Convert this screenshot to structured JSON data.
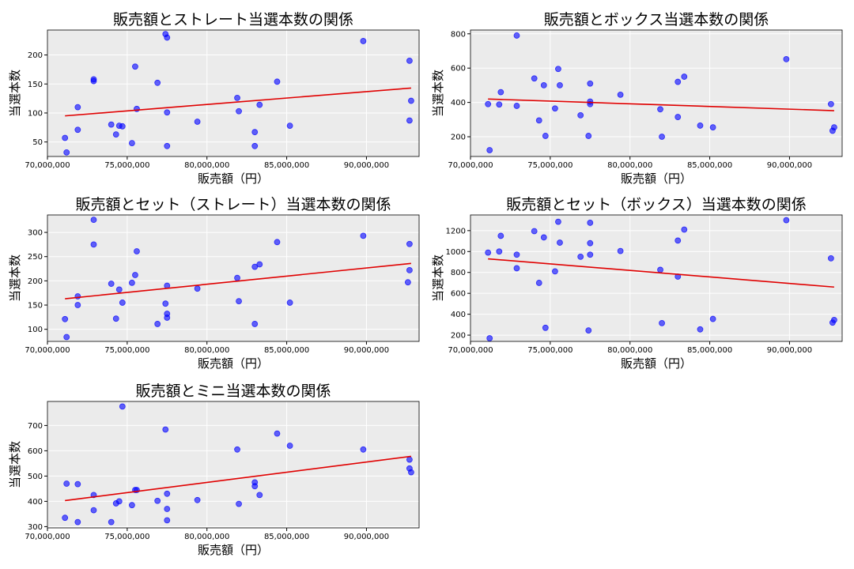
{
  "chart_data": [
    {
      "type": "scatter",
      "title": "販売額とストレート当選本数の関係",
      "xlabel": "販売額（円）",
      "ylabel": "当選本数",
      "xlim": [
        70000000,
        93300000
      ],
      "ylim": [
        25,
        243
      ],
      "xticks": [
        70000000,
        75000000,
        80000000,
        85000000,
        90000000
      ],
      "xtick_labels": [
        "70,000,000",
        "75,000,000",
        "80,000,000",
        "85,000,000",
        "90,000,000"
      ],
      "yticks": [
        50,
        100,
        150,
        200
      ],
      "ytick_labels": [
        "50",
        "100",
        "150",
        "200"
      ],
      "grid": true,
      "points": [
        {
          "x": 71100000,
          "y": 57
        },
        {
          "x": 71200000,
          "y": 32
        },
        {
          "x": 71900000,
          "y": 71
        },
        {
          "x": 71900000,
          "y": 110
        },
        {
          "x": 72900000,
          "y": 158
        },
        {
          "x": 72900000,
          "y": 155
        },
        {
          "x": 74000000,
          "y": 80
        },
        {
          "x": 74300000,
          "y": 63
        },
        {
          "x": 74500000,
          "y": 78
        },
        {
          "x": 74700000,
          "y": 77
        },
        {
          "x": 75300000,
          "y": 48
        },
        {
          "x": 75500000,
          "y": 180
        },
        {
          "x": 75600000,
          "y": 107
        },
        {
          "x": 76900000,
          "y": 152
        },
        {
          "x": 77400000,
          "y": 236
        },
        {
          "x": 77500000,
          "y": 230
        },
        {
          "x": 77500000,
          "y": 43
        },
        {
          "x": 77500000,
          "y": 101
        },
        {
          "x": 79400000,
          "y": 85
        },
        {
          "x": 81900000,
          "y": 126
        },
        {
          "x": 82000000,
          "y": 103
        },
        {
          "x": 83000000,
          "y": 67
        },
        {
          "x": 83000000,
          "y": 43
        },
        {
          "x": 83300000,
          "y": 114
        },
        {
          "x": 84400000,
          "y": 154
        },
        {
          "x": 85200000,
          "y": 78
        },
        {
          "x": 89800000,
          "y": 224
        },
        {
          "x": 92700000,
          "y": 190
        },
        {
          "x": 92700000,
          "y": 87
        },
        {
          "x": 92800000,
          "y": 121
        }
      ],
      "trend": {
        "x": [
          71100000,
          92800000
        ],
        "y": [
          95,
          143
        ]
      },
      "point_color": "#0000ff",
      "trend_color": "#e00000"
    },
    {
      "type": "scatter",
      "title": "販売額とボックス当選本数の関係",
      "xlabel": "販売額（円）",
      "ylabel": "当選本数",
      "xlim": [
        70000000,
        93300000
      ],
      "ylim": [
        85,
        822
      ],
      "xticks": [
        70000000,
        75000000,
        80000000,
        85000000,
        90000000
      ],
      "xtick_labels": [
        "70,000,000",
        "75,000,000",
        "80,000,000",
        "85,000,000",
        "90,000,000"
      ],
      "yticks": [
        200,
        400,
        600,
        800
      ],
      "ytick_labels": [
        "200",
        "400",
        "600",
        "800"
      ],
      "grid": true,
      "points": [
        {
          "x": 71100000,
          "y": 390
        },
        {
          "x": 71200000,
          "y": 122
        },
        {
          "x": 71800000,
          "y": 388
        },
        {
          "x": 71900000,
          "y": 460
        },
        {
          "x": 72900000,
          "y": 790
        },
        {
          "x": 72900000,
          "y": 380
        },
        {
          "x": 74000000,
          "y": 540
        },
        {
          "x": 74300000,
          "y": 295
        },
        {
          "x": 74600000,
          "y": 500
        },
        {
          "x": 74700000,
          "y": 205
        },
        {
          "x": 75300000,
          "y": 365
        },
        {
          "x": 75500000,
          "y": 595
        },
        {
          "x": 75600000,
          "y": 500
        },
        {
          "x": 76900000,
          "y": 325
        },
        {
          "x": 77400000,
          "y": 205
        },
        {
          "x": 77500000,
          "y": 510
        },
        {
          "x": 77500000,
          "y": 405
        },
        {
          "x": 77500000,
          "y": 390
        },
        {
          "x": 79400000,
          "y": 445
        },
        {
          "x": 81900000,
          "y": 360
        },
        {
          "x": 82000000,
          "y": 200
        },
        {
          "x": 83000000,
          "y": 520
        },
        {
          "x": 83000000,
          "y": 315
        },
        {
          "x": 83400000,
          "y": 550
        },
        {
          "x": 84400000,
          "y": 265
        },
        {
          "x": 85200000,
          "y": 255
        },
        {
          "x": 89800000,
          "y": 652
        },
        {
          "x": 92600000,
          "y": 390
        },
        {
          "x": 92700000,
          "y": 235
        },
        {
          "x": 92800000,
          "y": 255
        }
      ],
      "trend": {
        "x": [
          71100000,
          92800000
        ],
        "y": [
          420,
          352
        ]
      },
      "point_color": "#0000ff",
      "trend_color": "#e00000"
    },
    {
      "type": "scatter",
      "title": "販売額とセット（ストレート）当選本数の関係",
      "xlabel": "販売額（円）",
      "ylabel": "当選本数",
      "xlim": [
        70000000,
        93300000
      ],
      "ylim": [
        75,
        336
      ],
      "xticks": [
        70000000,
        75000000,
        80000000,
        85000000,
        90000000
      ],
      "xtick_labels": [
        "70,000,000",
        "75,000,000",
        "80,000,000",
        "85,000,000",
        "90,000,000"
      ],
      "yticks": [
        100,
        150,
        200,
        250,
        300
      ],
      "ytick_labels": [
        "100",
        "150",
        "200",
        "250",
        "300"
      ],
      "grid": true,
      "points": [
        {
          "x": 71100000,
          "y": 121
        },
        {
          "x": 71200000,
          "y": 84
        },
        {
          "x": 71900000,
          "y": 150
        },
        {
          "x": 71900000,
          "y": 168
        },
        {
          "x": 72900000,
          "y": 326
        },
        {
          "x": 72900000,
          "y": 275
        },
        {
          "x": 74000000,
          "y": 194
        },
        {
          "x": 74300000,
          "y": 122
        },
        {
          "x": 74500000,
          "y": 182
        },
        {
          "x": 74700000,
          "y": 155
        },
        {
          "x": 75300000,
          "y": 196
        },
        {
          "x": 75500000,
          "y": 212
        },
        {
          "x": 75600000,
          "y": 261
        },
        {
          "x": 76900000,
          "y": 111
        },
        {
          "x": 77400000,
          "y": 153
        },
        {
          "x": 77500000,
          "y": 190
        },
        {
          "x": 77500000,
          "y": 132
        },
        {
          "x": 77500000,
          "y": 124
        },
        {
          "x": 79400000,
          "y": 184
        },
        {
          "x": 81900000,
          "y": 206
        },
        {
          "x": 82000000,
          "y": 158
        },
        {
          "x": 83000000,
          "y": 229
        },
        {
          "x": 83000000,
          "y": 111
        },
        {
          "x": 83300000,
          "y": 234
        },
        {
          "x": 84400000,
          "y": 280
        },
        {
          "x": 85200000,
          "y": 155
        },
        {
          "x": 89800000,
          "y": 293
        },
        {
          "x": 92700000,
          "y": 276
        },
        {
          "x": 92700000,
          "y": 222
        },
        {
          "x": 92600000,
          "y": 197
        }
      ],
      "trend": {
        "x": [
          71100000,
          92800000
        ],
        "y": [
          163,
          236
        ]
      },
      "point_color": "#0000ff",
      "trend_color": "#e00000"
    },
    {
      "type": "scatter",
      "title": "販売額とセット（ボックス）当選本数の関係",
      "xlabel": "販売額（円）",
      "ylabel": "当選本数",
      "xlim": [
        70000000,
        93300000
      ],
      "ylim": [
        140,
        1350
      ],
      "xticks": [
        70000000,
        75000000,
        80000000,
        85000000,
        90000000
      ],
      "xtick_labels": [
        "70,000,000",
        "75,000,000",
        "80,000,000",
        "85,000,000",
        "90,000,000"
      ],
      "yticks": [
        200,
        400,
        600,
        800,
        1000,
        1200
      ],
      "ytick_labels": [
        "200",
        "400",
        "600",
        "800",
        "1000",
        "1200"
      ],
      "grid": true,
      "points": [
        {
          "x": 71100000,
          "y": 990
        },
        {
          "x": 71200000,
          "y": 170
        },
        {
          "x": 71800000,
          "y": 1000
        },
        {
          "x": 71900000,
          "y": 1150
        },
        {
          "x": 72900000,
          "y": 970
        },
        {
          "x": 72900000,
          "y": 840
        },
        {
          "x": 74000000,
          "y": 1195
        },
        {
          "x": 74300000,
          "y": 700
        },
        {
          "x": 74600000,
          "y": 1135
        },
        {
          "x": 74700000,
          "y": 270
        },
        {
          "x": 75300000,
          "y": 810
        },
        {
          "x": 75500000,
          "y": 1285
        },
        {
          "x": 75600000,
          "y": 1085
        },
        {
          "x": 76900000,
          "y": 950
        },
        {
          "x": 77400000,
          "y": 245
        },
        {
          "x": 77500000,
          "y": 1275
        },
        {
          "x": 77500000,
          "y": 1080
        },
        {
          "x": 77500000,
          "y": 970
        },
        {
          "x": 79400000,
          "y": 1005
        },
        {
          "x": 81900000,
          "y": 825
        },
        {
          "x": 82000000,
          "y": 315
        },
        {
          "x": 83000000,
          "y": 1105
        },
        {
          "x": 83000000,
          "y": 760
        },
        {
          "x": 83400000,
          "y": 1210
        },
        {
          "x": 84400000,
          "y": 255
        },
        {
          "x": 85200000,
          "y": 355
        },
        {
          "x": 89800000,
          "y": 1300
        },
        {
          "x": 92600000,
          "y": 935
        },
        {
          "x": 92700000,
          "y": 320
        },
        {
          "x": 92800000,
          "y": 345
        }
      ],
      "trend": {
        "x": [
          71100000,
          92800000
        ],
        "y": [
          930,
          660
        ]
      },
      "point_color": "#0000ff",
      "trend_color": "#e00000"
    },
    {
      "type": "scatter",
      "title": "販売額とミニ当選本数の関係",
      "xlabel": "販売額（円）",
      "ylabel": "当選本数",
      "xlim": [
        70000000,
        93300000
      ],
      "ylim": [
        295,
        795
      ],
      "xticks": [
        70000000,
        75000000,
        80000000,
        85000000,
        90000000
      ],
      "xtick_labels": [
        "70,000,000",
        "75,000,000",
        "80,000,000",
        "85,000,000",
        "90,000,000"
      ],
      "yticks": [
        300,
        400,
        500,
        600,
        700
      ],
      "ytick_labels": [
        "300",
        "400",
        "500",
        "600",
        "700"
      ],
      "grid": true,
      "points": [
        {
          "x": 71100000,
          "y": 335
        },
        {
          "x": 71200000,
          "y": 470
        },
        {
          "x": 71900000,
          "y": 318
        },
        {
          "x": 71900000,
          "y": 468
        },
        {
          "x": 72900000,
          "y": 365
        },
        {
          "x": 72900000,
          "y": 425
        },
        {
          "x": 74000000,
          "y": 318
        },
        {
          "x": 74300000,
          "y": 392
        },
        {
          "x": 74500000,
          "y": 400
        },
        {
          "x": 74700000,
          "y": 775
        },
        {
          "x": 75300000,
          "y": 385
        },
        {
          "x": 75500000,
          "y": 445
        },
        {
          "x": 75600000,
          "y": 445
        },
        {
          "x": 76900000,
          "y": 402
        },
        {
          "x": 77400000,
          "y": 684
        },
        {
          "x": 77500000,
          "y": 430
        },
        {
          "x": 77500000,
          "y": 370
        },
        {
          "x": 77500000,
          "y": 325
        },
        {
          "x": 79400000,
          "y": 405
        },
        {
          "x": 81900000,
          "y": 605
        },
        {
          "x": 82000000,
          "y": 390
        },
        {
          "x": 83000000,
          "y": 475
        },
        {
          "x": 83000000,
          "y": 460
        },
        {
          "x": 83300000,
          "y": 425
        },
        {
          "x": 84400000,
          "y": 668
        },
        {
          "x": 85200000,
          "y": 620
        },
        {
          "x": 89800000,
          "y": 605
        },
        {
          "x": 92700000,
          "y": 565
        },
        {
          "x": 92700000,
          "y": 530
        },
        {
          "x": 92800000,
          "y": 515
        }
      ],
      "trend": {
        "x": [
          71100000,
          92800000
        ],
        "y": [
          403,
          578
        ]
      },
      "point_color": "#0000ff",
      "trend_color": "#e00000"
    }
  ]
}
